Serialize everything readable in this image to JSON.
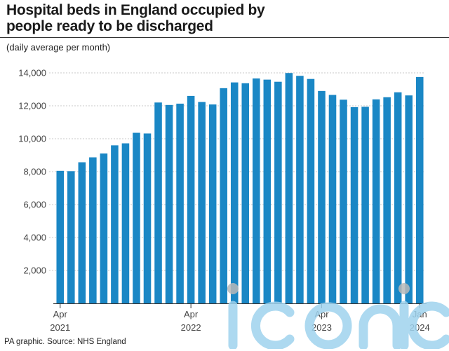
{
  "header": {
    "title_line1": "Hospital beds in England occupied by",
    "title_line2": "people ready to be discharged",
    "subtitle": "(daily average per month)"
  },
  "footer": {
    "source": "PA graphic. Source: NHS England"
  },
  "colors": {
    "bar": "#1a87c5",
    "gridline": "#c8c8c8",
    "watermark": "#9fd3ee"
  },
  "chart_data": {
    "type": "bar",
    "title": "Hospital beds in England occupied by people ready to be discharged",
    "subtitle": "(daily average per month)",
    "ylim": [
      0,
      14000
    ],
    "yticks": [
      {
        "value": 0,
        "label": ""
      },
      {
        "value": 2000,
        "label": "2,000"
      },
      {
        "value": 4000,
        "label": "4,000"
      },
      {
        "value": 6000,
        "label": "6,000"
      },
      {
        "value": 8000,
        "label": "8,000"
      },
      {
        "value": 10000,
        "label": "10,000"
      },
      {
        "value": 12000,
        "label": "12,000"
      },
      {
        "value": 14000,
        "label": "14,000"
      }
    ],
    "grid": true,
    "xticks": [
      {
        "index": 0,
        "month": "Apr",
        "year": "2021"
      },
      {
        "index": 12,
        "month": "Apr",
        "year": "2022"
      },
      {
        "index": 24,
        "month": "Apr",
        "year": "2023"
      },
      {
        "index": 33,
        "month": "Jan",
        "year": "2024"
      }
    ],
    "categories": [
      "Apr 2021",
      "May 2021",
      "Jun 2021",
      "Jul 2021",
      "Aug 2021",
      "Sep 2021",
      "Oct 2021",
      "Nov 2021",
      "Dec 2021",
      "Jan 2022",
      "Feb 2022",
      "Mar 2022",
      "Apr 2022",
      "May 2022",
      "Jun 2022",
      "Jul 2022",
      "Aug 2022",
      "Sep 2022",
      "Oct 2022",
      "Nov 2022",
      "Dec 2022",
      "Jan 2023",
      "Feb 2023",
      "Mar 2023",
      "Apr 2023",
      "May 2023",
      "Jun 2023",
      "Jul 2023",
      "Aug 2023",
      "Sep 2023",
      "Oct 2023",
      "Nov 2023",
      "Dec 2023",
      "Jan 2024"
    ],
    "values": [
      8050,
      8030,
      8570,
      8870,
      9100,
      9600,
      9720,
      10360,
      10320,
      12200,
      12050,
      12130,
      12600,
      12230,
      12080,
      13070,
      13420,
      13370,
      13660,
      13590,
      13460,
      13990,
      13820,
      13630,
      12900,
      12660,
      12370,
      11920,
      11940,
      12390,
      12520,
      12820,
      12630,
      13750
    ]
  }
}
